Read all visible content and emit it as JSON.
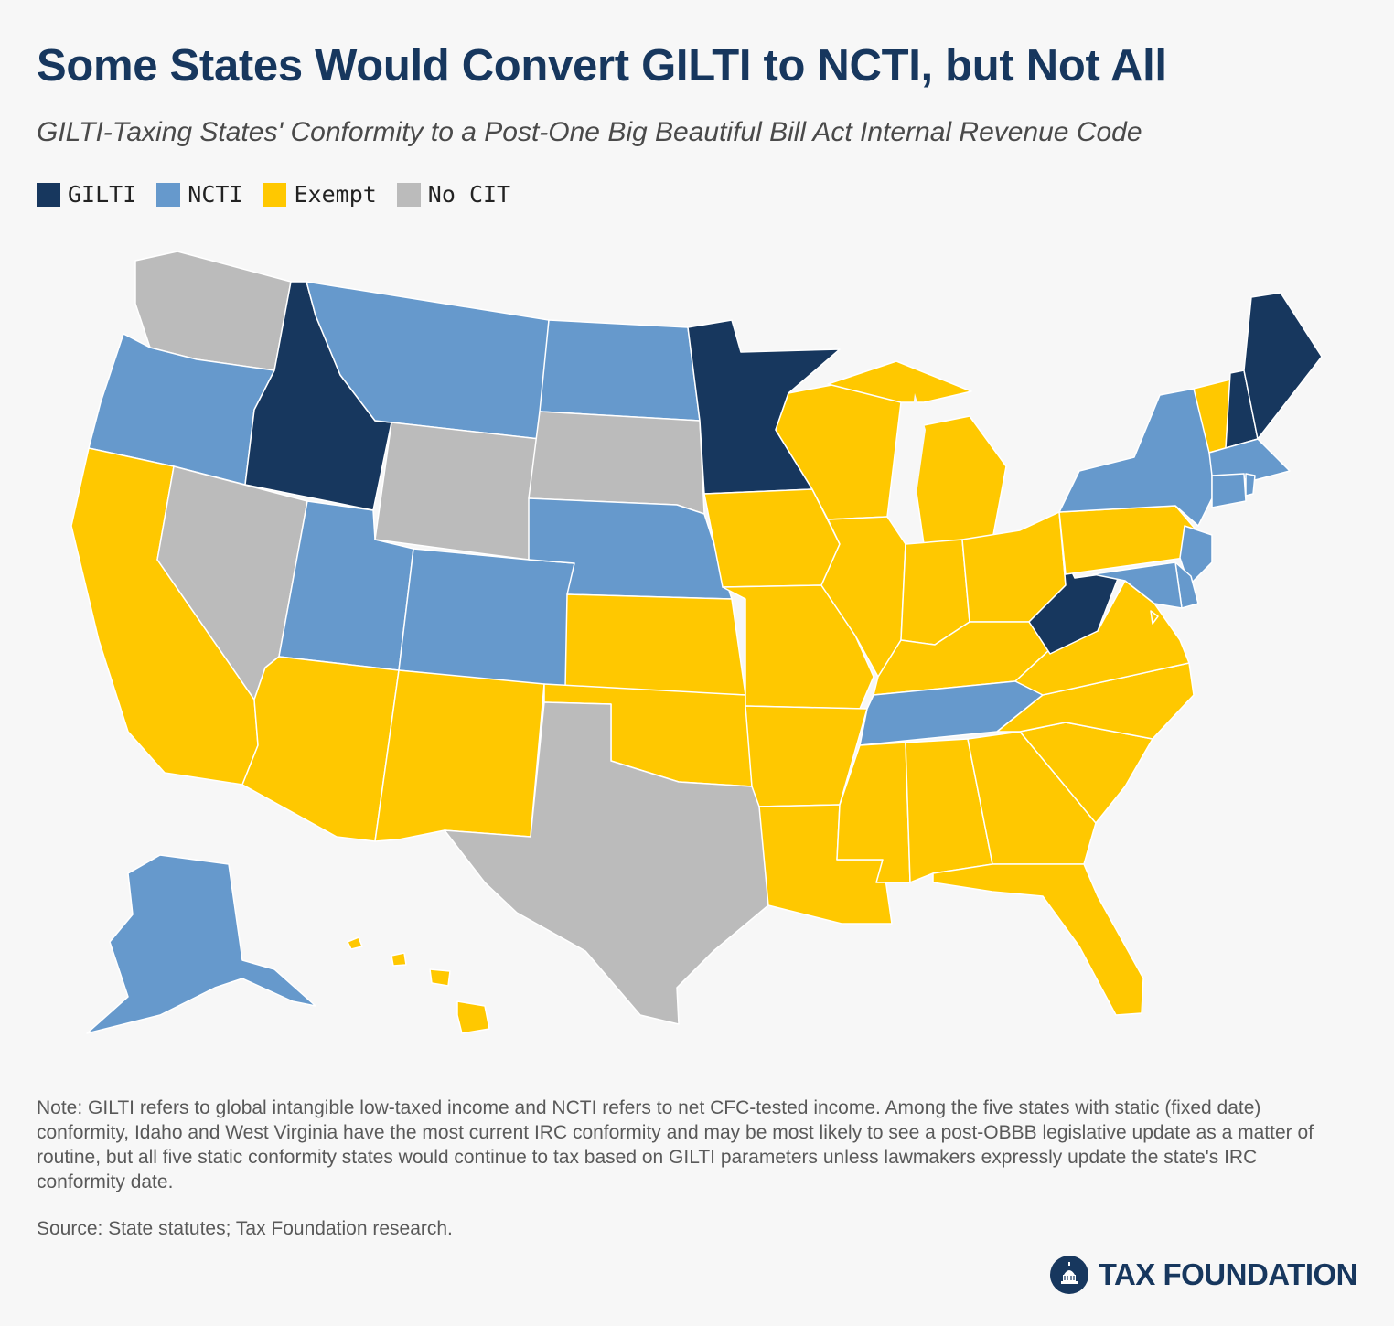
{
  "title": "Some States Would Convert GILTI to NCTI, but Not All",
  "subtitle": "GILTI-Taxing States' Conformity to a Post-One Big Beautiful Bill Act Internal Revenue Code",
  "legend": [
    {
      "label": "GILTI",
      "color": "#17375e"
    },
    {
      "label": "NCTI",
      "color": "#6699cc"
    },
    {
      "label": "Exempt",
      "color": "#ffc800"
    },
    {
      "label": "No CIT",
      "color": "#bbbbbb"
    }
  ],
  "states": {
    "GILTI": [
      "ID",
      "MN",
      "WV",
      "NH",
      "ME"
    ],
    "NCTI": [
      "OR",
      "MT",
      "ND",
      "NE",
      "UT",
      "CO",
      "TN",
      "NY",
      "NJ",
      "MD",
      "DE",
      "MA",
      "CT",
      "RI",
      "AK"
    ],
    "Exempt": [
      "CA",
      "AZ",
      "NM",
      "KS",
      "OK",
      "IA",
      "MO",
      "AR",
      "LA",
      "WI",
      "IL",
      "MI",
      "IN",
      "OH",
      "KY",
      "MS",
      "AL",
      "GA",
      "FL",
      "SC",
      "NC",
      "VA",
      "PA",
      "VT",
      "HI",
      "DC"
    ],
    "No CIT": [
      "WA",
      "NV",
      "WY",
      "SD",
      "TX"
    ]
  },
  "note": "Note: GILTI refers to global intangible low-taxed income and NCTI refers to net CFC-tested income. Among the five states with static (fixed date) conformity, Idaho and West Virginia have the most current IRC conformity and may be most likely to see a post-OBBB legislative update as a matter of routine, but all five static conformity states would continue to tax based on GILTI parameters unless lawmakers expressly update the state's IRC conformity date.",
  "source": "Source: State statutes; Tax Foundation research.",
  "brand": "TAX FOUNDATION"
}
